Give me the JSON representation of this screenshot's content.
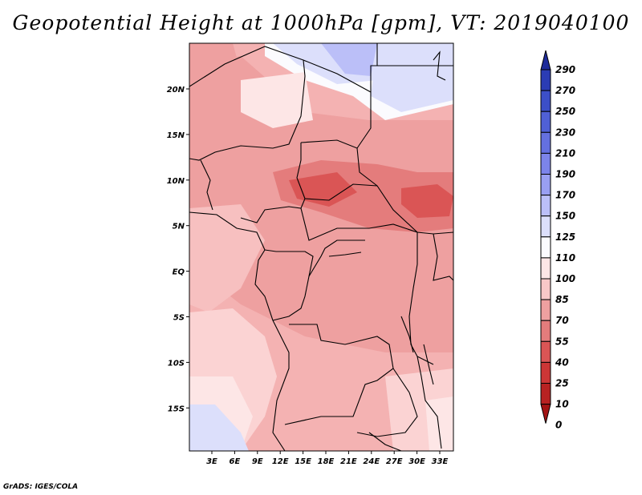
{
  "title": "Geopotential Height at 1000hPa [gpm], VT: 2019040100",
  "credit": "GrADS: IGES/COLA",
  "map": {
    "lat_labels": [
      "20N",
      "15N",
      "10N",
      "5N",
      "EQ",
      "5S",
      "10S",
      "15S"
    ],
    "lon_labels": [
      "3E",
      "6E",
      "9E",
      "12E",
      "15E",
      "18E",
      "21E",
      "24E",
      "27E",
      "30E",
      "33E"
    ]
  },
  "colorbar": {
    "labels": [
      "290",
      "270",
      "250",
      "230",
      "210",
      "190",
      "170",
      "150",
      "125",
      "110",
      "100",
      "85",
      "70",
      "55",
      "40",
      "25",
      "10",
      "0"
    ],
    "colors": [
      "#1e2b9a",
      "#2b3cb4",
      "#3c4fc8",
      "#5060d6",
      "#6470e0",
      "#7c84ea",
      "#999ff2",
      "#bbbff8",
      "#dcdffb",
      "#fbfbfe",
      "#fde6e6",
      "#f8c8c8",
      "#eea0a0",
      "#e47c7c",
      "#da5555",
      "#cc3636",
      "#b82222",
      "#a31414"
    ]
  }
}
